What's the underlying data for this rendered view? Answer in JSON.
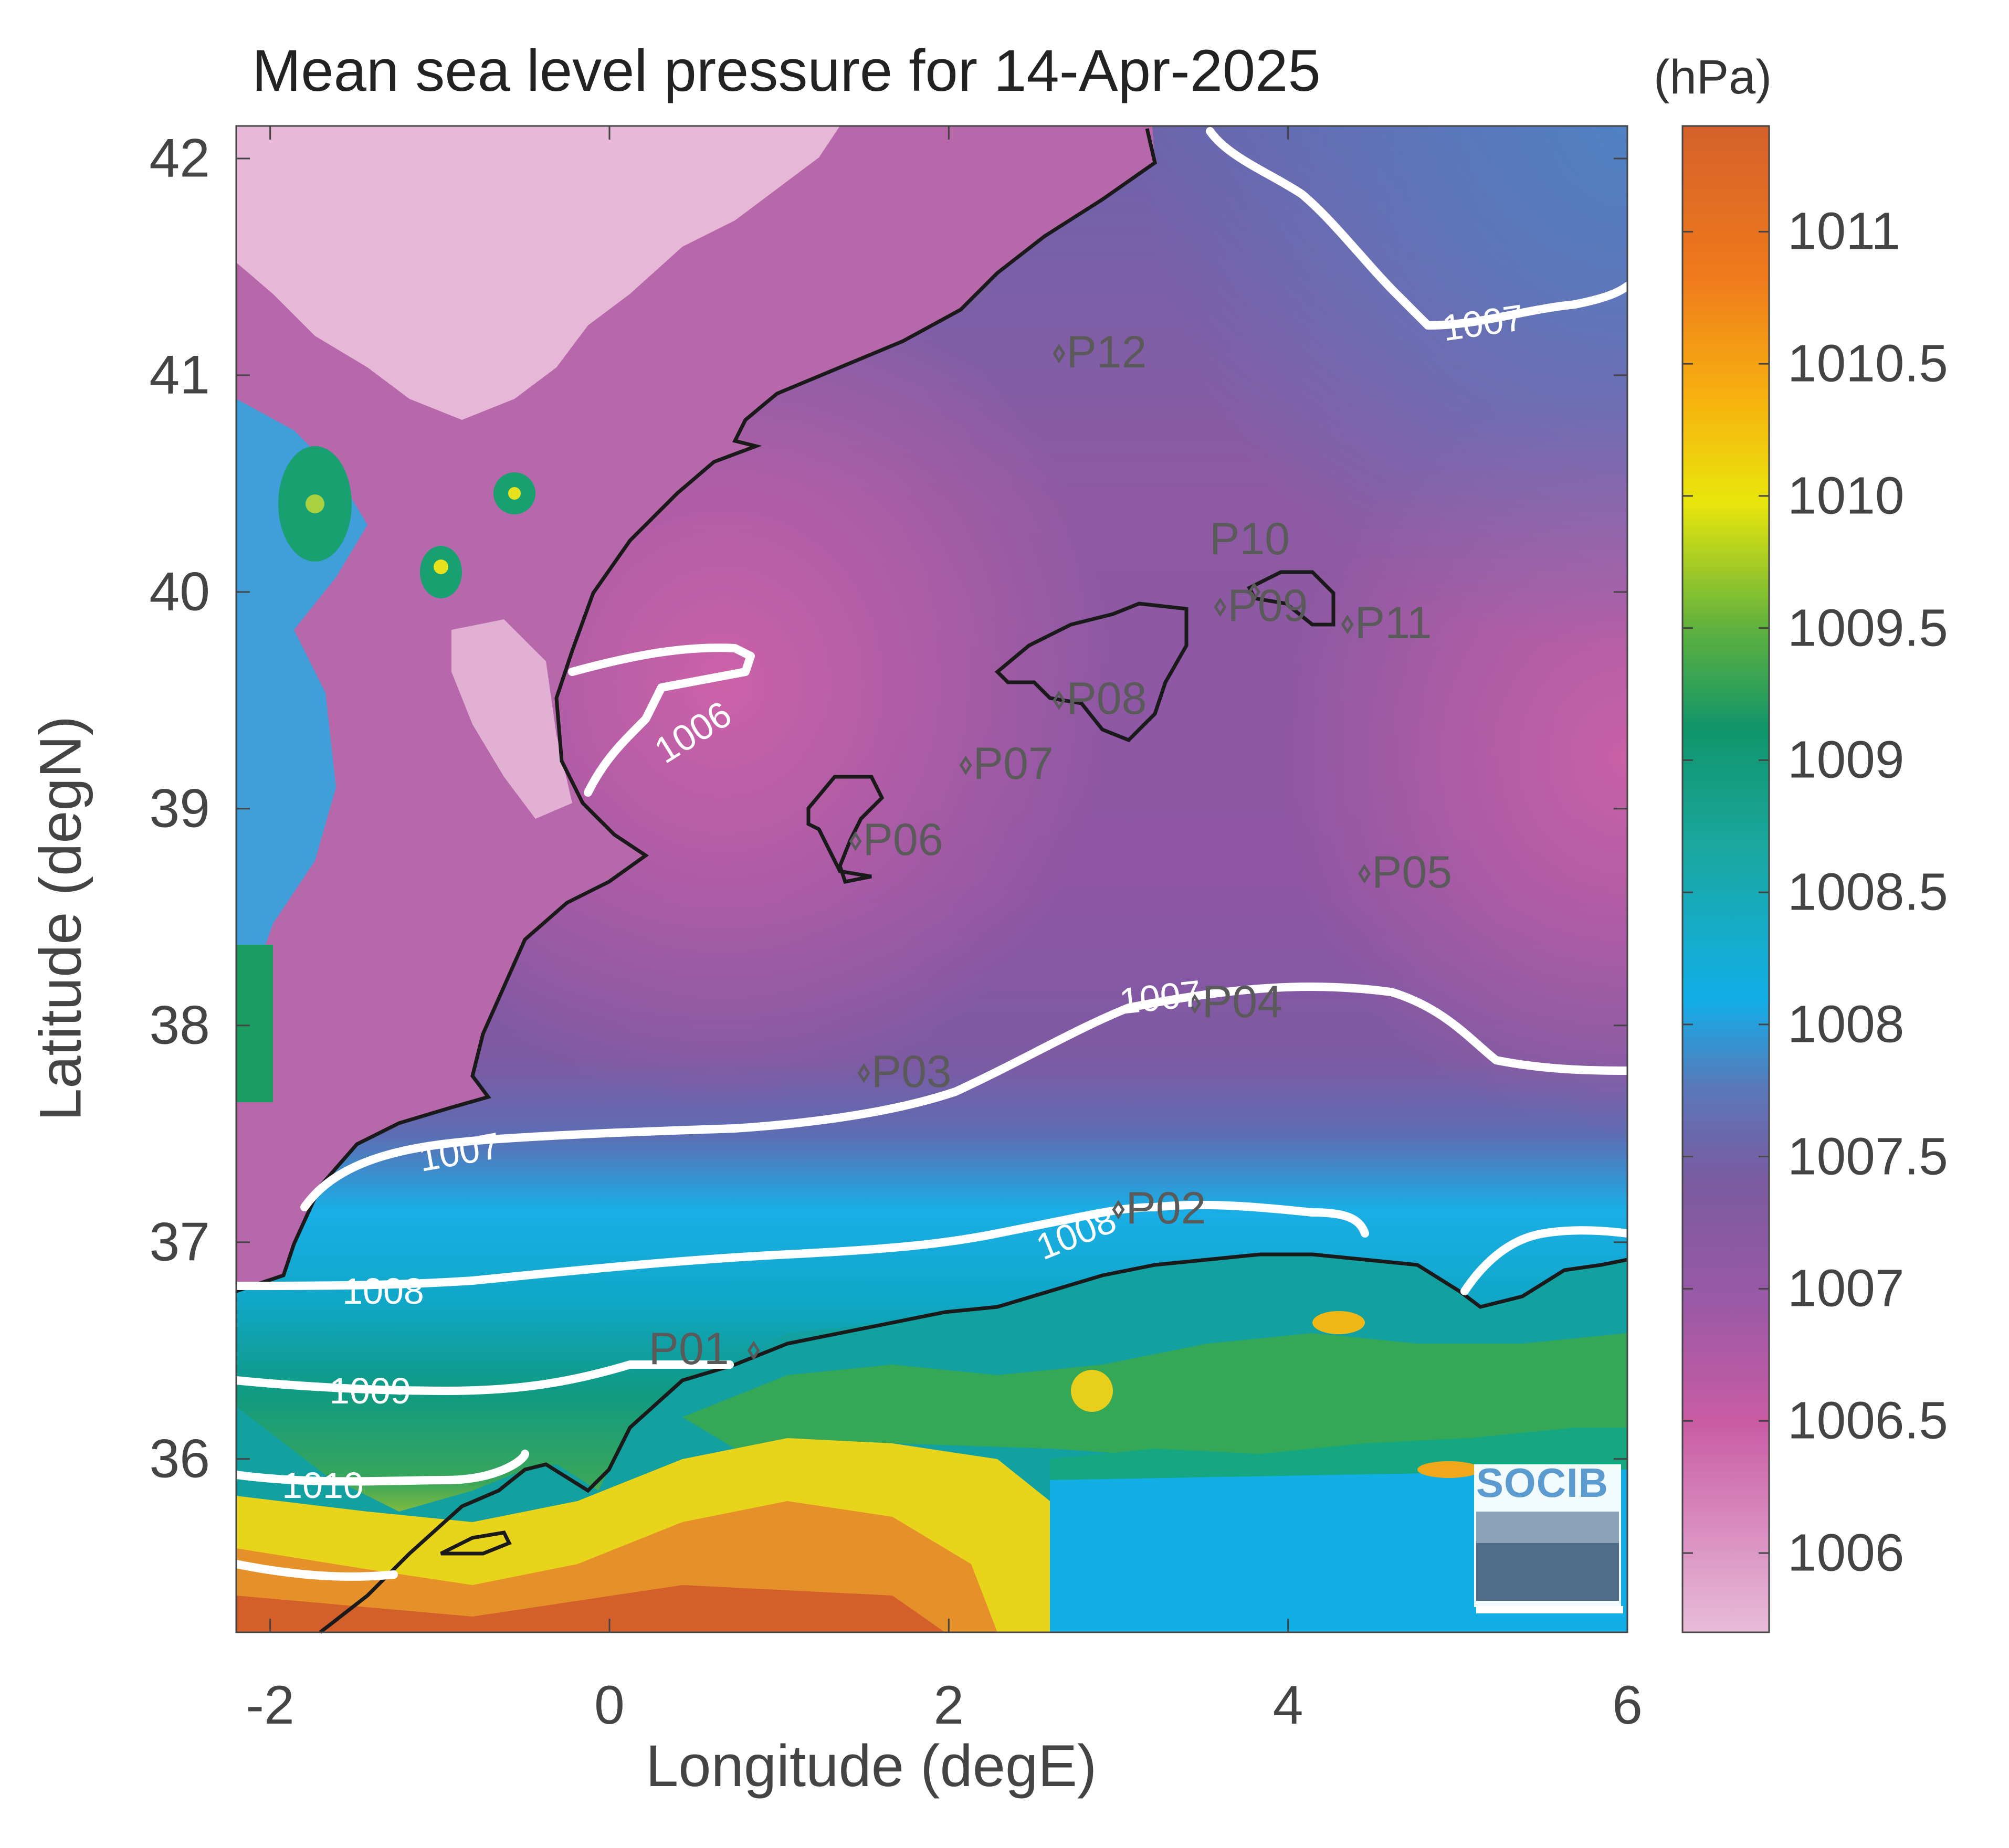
{
  "title": "Mean sea level pressure for 14-Apr-2025",
  "colorbar": {
    "unit": "(hPa)",
    "ticks": [
      "1011",
      "1010.5",
      "1010",
      "1009.5",
      "1009",
      "1008.5",
      "1008",
      "1007.5",
      "1007",
      "1006.5",
      "1006"
    ],
    "range": [
      1005.7,
      1011.4
    ],
    "colors": [
      "#e8bcd8",
      "#c95ca3",
      "#7a5aa0",
      "#5b77b8",
      "#12aee8",
      "#1aa8a0",
      "#11956a",
      "#64b33c",
      "#e9e60c",
      "#f7b10f",
      "#ef7a1c",
      "#d4612b"
    ]
  },
  "axes": {
    "xlabel": "Longitude (degE)",
    "ylabel": "Latitude (degN)",
    "xticks": [
      "-2",
      "0",
      "2",
      "4",
      "6"
    ],
    "yticks": [
      "42",
      "41",
      "40",
      "39",
      "38",
      "37",
      "36"
    ],
    "xlim": [
      -2.2,
      6.0
    ],
    "ylim": [
      35.2,
      42.15
    ]
  },
  "contours": [
    {
      "label": "1006"
    },
    {
      "label": "1007"
    },
    {
      "label": "1008"
    },
    {
      "label": "1009"
    },
    {
      "label": "1010"
    }
  ],
  "stations": [
    {
      "name": "P01",
      "lon": 0.85,
      "lat": 36.5
    },
    {
      "name": "P02",
      "lon": 3.0,
      "lat": 37.15
    },
    {
      "name": "P03",
      "lon": 1.5,
      "lat": 37.78
    },
    {
      "name": "P04",
      "lon": 3.45,
      "lat": 38.1
    },
    {
      "name": "P05",
      "lon": 4.45,
      "lat": 38.7
    },
    {
      "name": "P06",
      "lon": 1.45,
      "lat": 38.85
    },
    {
      "name": "P07",
      "lon": 2.1,
      "lat": 39.2
    },
    {
      "name": "P08",
      "lon": 2.65,
      "lat": 39.5
    },
    {
      "name": "P09",
      "lon": 3.6,
      "lat": 39.93
    },
    {
      "name": "P10",
      "lon": 3.8,
      "lat": 40.0
    },
    {
      "name": "P11",
      "lon": 4.35,
      "lat": 39.85
    },
    {
      "name": "P12",
      "lon": 2.65,
      "lat": 41.1
    }
  ],
  "logo": "SOCIB"
}
